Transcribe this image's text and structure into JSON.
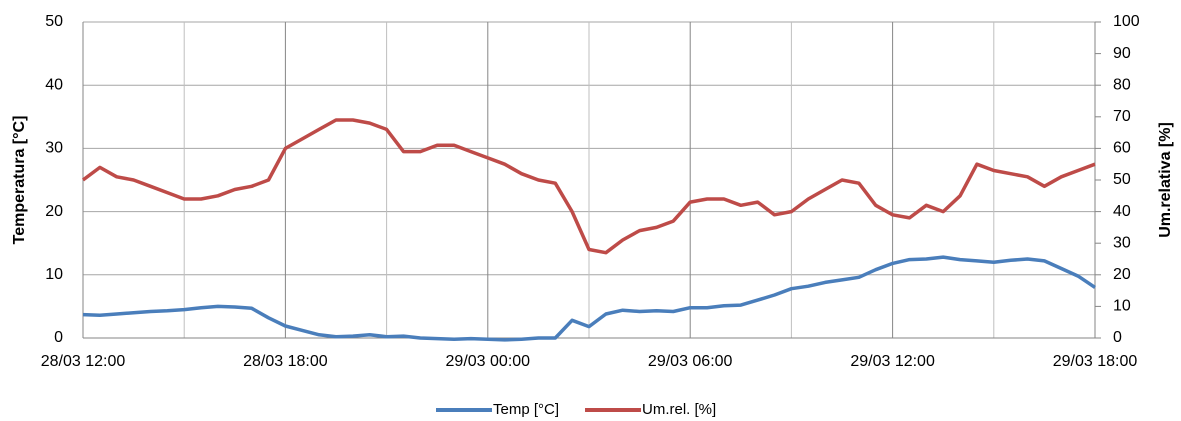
{
  "chart_data": {
    "type": "line",
    "y_label": "Temperatura [°C]",
    "y2_label": "Um.relativa [%]",
    "x": [
      "28/03 12:00",
      "28/03 12:30",
      "28/03 13:00",
      "28/03 13:30",
      "28/03 14:00",
      "28/03 14:30",
      "28/03 15:00",
      "28/03 15:30",
      "28/03 16:00",
      "28/03 16:30",
      "28/03 17:00",
      "28/03 17:30",
      "28/03 18:00",
      "28/03 18:30",
      "28/03 19:00",
      "28/03 19:30",
      "28/03 20:00",
      "28/03 20:30",
      "28/03 21:00",
      "28/03 21:30",
      "28/03 22:00",
      "28/03 22:30",
      "28/03 23:00",
      "28/03 23:30",
      "29/03 00:00",
      "29/03 00:30",
      "29/03 01:00",
      "29/03 01:30",
      "29/03 02:00",
      "29/03 02:30",
      "29/03 03:00",
      "29/03 03:30",
      "29/03 04:00",
      "29/03 04:30",
      "29/03 05:00",
      "29/03 05:30",
      "29/03 06:00",
      "29/03 06:30",
      "29/03 07:00",
      "29/03 07:30",
      "29/03 08:00",
      "29/03 08:30",
      "29/03 09:00",
      "29/03 09:30",
      "29/03 10:00",
      "29/03 10:30",
      "29/03 11:00",
      "29/03 11:30",
      "29/03 12:00",
      "29/03 12:30",
      "29/03 13:00",
      "29/03 13:30",
      "29/03 14:00",
      "29/03 14:30",
      "29/03 15:00",
      "29/03 15:30",
      "29/03 16:00",
      "29/03 16:30",
      "29/03 17:00",
      "29/03 17:30",
      "29/03 18:00"
    ],
    "series": [
      {
        "name": "Temp [°C]",
        "color": "#4a7ebb",
        "values": [
          3.7,
          3.6,
          3.8,
          4.0,
          4.2,
          4.3,
          4.5,
          4.8,
          5.0,
          4.9,
          4.7,
          3.2,
          1.9,
          1.2,
          0.5,
          0.2,
          0.3,
          0.5,
          0.2,
          0.3,
          0.0,
          -0.1,
          -0.2,
          -0.1,
          -0.2,
          -0.3,
          -0.2,
          0.0,
          0.0,
          2.8,
          1.8,
          3.8,
          4.4,
          4.2,
          4.3,
          4.2,
          4.8,
          4.8,
          5.1,
          5.2,
          6.0,
          6.8,
          7.8,
          8.2,
          8.8,
          9.2,
          9.6,
          10.8,
          11.8,
          12.4,
          12.5,
          12.8,
          12.4,
          12.2,
          12.0,
          12.3,
          12.5,
          12.2,
          11.0,
          9.8,
          8.0
        ]
      },
      {
        "name": "Um.rel. [%]",
        "color": "#be4b48",
        "axis": "y2",
        "values": [
          50,
          54,
          51,
          50,
          48,
          46,
          44,
          44,
          45,
          47,
          48,
          50,
          60,
          63,
          66,
          69,
          69,
          68,
          66,
          59,
          59,
          61,
          61,
          59,
          57,
          55,
          52,
          50,
          49,
          40,
          28,
          27,
          31,
          34,
          35,
          37,
          43,
          44,
          44,
          42,
          43,
          39,
          40,
          44,
          47,
          50,
          49,
          42,
          39,
          38,
          42,
          40,
          45,
          55,
          53,
          52,
          51,
          48,
          51,
          53,
          55
        ]
      }
    ],
    "xlim": [
      "28/03 12:00",
      "29/03 18:00"
    ],
    "xticks": [
      "28/03 12:00",
      "28/03 18:00",
      "29/03 00:00",
      "29/03 06:00",
      "29/03 12:00",
      "29/03 18:00"
    ],
    "ylim": [
      0,
      50
    ],
    "yticks": [
      0,
      10,
      20,
      30,
      40,
      50
    ],
    "y2lim": [
      0,
      100
    ],
    "y2ticks": [
      0,
      10,
      20,
      30,
      40,
      50,
      60,
      70,
      80,
      90,
      100
    ],
    "grid": true,
    "legend": "bottom"
  }
}
